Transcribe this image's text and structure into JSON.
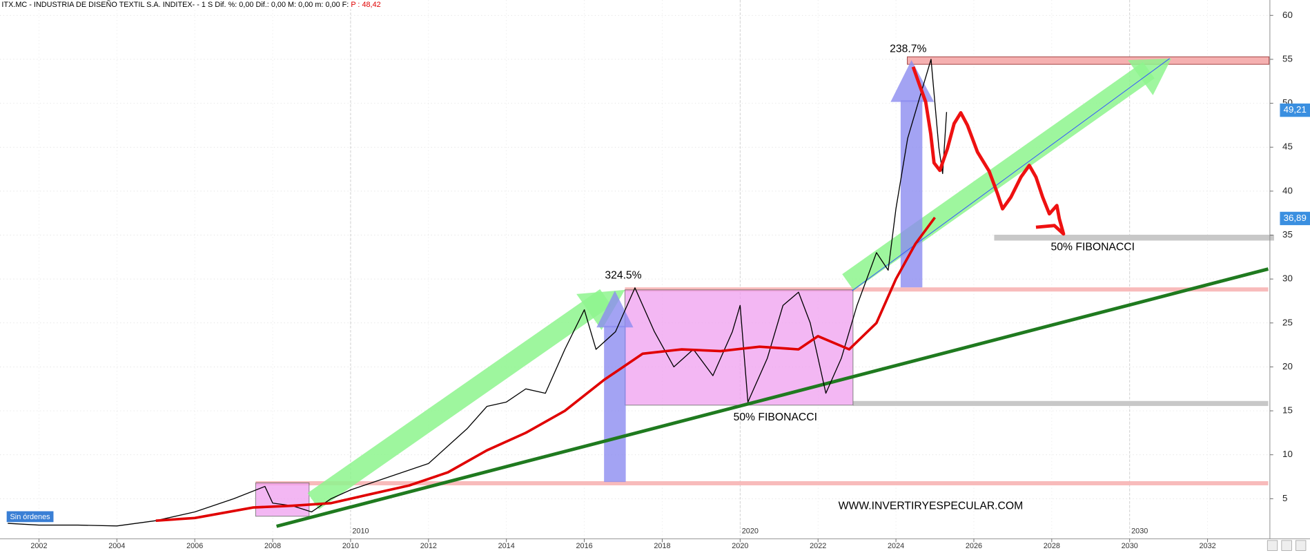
{
  "chart_data": {
    "type": "line",
    "header": "ITX.MC - INDUSTRIA DE DISEÑO TEXTIL S.A. INDITEX- -  1 S  Dif. %: 0,00  Dif.: 0,00  M: 0,00  m: 0,00  F:",
    "header_price": "P : 48,42",
    "xlim": [
      2001,
      2033.6
    ],
    "ylim": [
      0,
      61.75
    ],
    "xticks": [
      2002,
      2004,
      2006,
      2008,
      2010,
      2012,
      2014,
      2016,
      2018,
      2020,
      2022,
      2024,
      2026,
      2028,
      2030,
      2032
    ],
    "xticks_major": [
      2010,
      2020,
      2030
    ],
    "yticks": [
      5,
      10,
      15,
      20,
      25,
      30,
      35,
      40,
      45,
      50,
      55,
      60
    ],
    "grid": true,
    "series": [
      {
        "color": "#000000",
        "x": [
          2001.2,
          2002,
          2003,
          2004,
          2005,
          2006,
          2007,
          2007.8,
          2008,
          2008.5,
          2009,
          2009.5,
          2010,
          2011,
          2012,
          2013,
          2013.5,
          2014,
          2014.5,
          2015,
          2015.5,
          2016,
          2016.3,
          2016.8,
          2017.3,
          2017.8,
          2018.3,
          2018.8,
          2019.3,
          2019.8,
          2020,
          2020.2,
          2020.7,
          2021.1,
          2021.5,
          2021.8,
          2022.2,
          2022.6,
          2023,
          2023.5,
          2023.8,
          2024,
          2024.3,
          2024.7,
          2024.9,
          2025.1,
          2025.2,
          2025.3
        ],
        "values": [
          2.2,
          2.0,
          2.0,
          1.9,
          2.5,
          3.5,
          5.0,
          6.4,
          4.5,
          4.2,
          3.5,
          5,
          6,
          7.5,
          9,
          13,
          15.5,
          16,
          17.5,
          17,
          22,
          26.5,
          22,
          24,
          29,
          24,
          20,
          22,
          19,
          24,
          27,
          16,
          21,
          27,
          28.5,
          25,
          17,
          21,
          27,
          33,
          31,
          38,
          46,
          52,
          55,
          45,
          42,
          49
        ]
      },
      {
        "color": "#e00000",
        "x": [
          2005,
          2006,
          2007.5,
          2008.5,
          2009.5,
          2010.5,
          2011.5,
          2012.5,
          2013.5,
          2014.5,
          2015.5,
          2016.5,
          2017.5,
          2018.5,
          2019.5,
          2020.5,
          2021.5,
          2022,
          2022.8,
          2023.5,
          2024,
          2024.5,
          2025
        ],
        "values": [
          2.5,
          2.8,
          4,
          4.2,
          4.5,
          5.5,
          6.5,
          8,
          10.5,
          12.5,
          15,
          18.5,
          21.5,
          22,
          21.8,
          22.3,
          22,
          23.5,
          22,
          25,
          30,
          34,
          37
        ]
      }
    ],
    "price_labels": [
      {
        "value": 49.21,
        "label": "49,21"
      },
      {
        "value": 36.89,
        "label": "36,89"
      }
    ],
    "annotations": [
      "324.5%",
      "238.7%",
      "50% FIBONACCI",
      "50% FIBONACCI",
      "WWW.INVERTIRYESPECULAR.COM"
    ],
    "status": "Sin órdenes"
  }
}
